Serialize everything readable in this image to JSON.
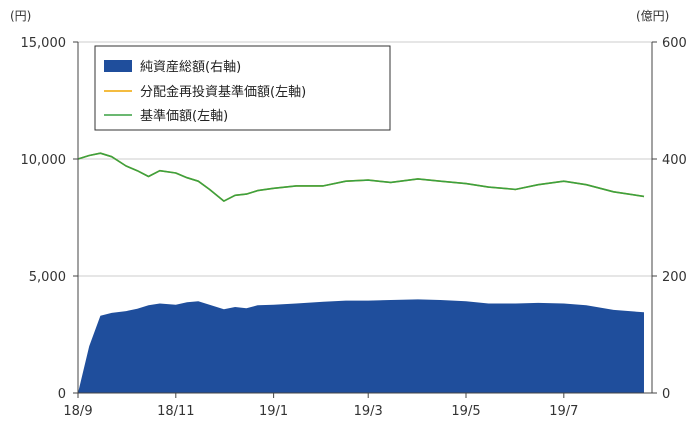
{
  "chart_data": {
    "type": "line",
    "title": "",
    "units": {
      "left": "(円)",
      "right": "(億円)"
    },
    "x_ticks": [
      "18/9",
      "18/11",
      "19/1",
      "19/3",
      "19/5",
      "19/7"
    ],
    "y_left": {
      "ylim": [
        0,
        15000
      ],
      "ticks": [
        "15,000",
        "10,000",
        "5,000",
        "0"
      ]
    },
    "y_right": {
      "ylim": [
        0,
        600
      ],
      "ticks": [
        "600",
        "400",
        "200",
        "0"
      ]
    },
    "grid": true,
    "legend_placement": "top-left",
    "legend": [
      "純資産総額(右軸)",
      "分配金再投資基準価額(左軸)",
      "基準価額(左軸)"
    ],
    "colors": {
      "nav_total": "#1f4e9c",
      "reinvested": "#f0a500",
      "nav": "#3aa142"
    },
    "x": [
      "2018-09-01",
      "2018-09-08",
      "2018-09-15",
      "2018-09-22",
      "2018-10-01",
      "2018-10-08",
      "2018-10-15",
      "2018-10-22",
      "2018-11-01",
      "2018-11-08",
      "2018-11-15",
      "2018-11-22",
      "2018-12-01",
      "2018-12-08",
      "2018-12-15",
      "2018-12-22",
      "2019-01-01",
      "2019-01-15",
      "2019-02-01",
      "2019-02-15",
      "2019-03-01",
      "2019-03-15",
      "2019-04-01",
      "2019-04-15",
      "2019-05-01",
      "2019-05-15",
      "2019-06-01",
      "2019-06-15",
      "2019-07-01",
      "2019-07-15",
      "2019-08-01",
      "2019-08-20"
    ],
    "series": [
      {
        "name": "純資産総額(右軸)",
        "axis": "right",
        "type": "area",
        "values": [
          0,
          80,
          132,
          137,
          140,
          144,
          150,
          153,
          151,
          155,
          157,
          151,
          143,
          147,
          145,
          150,
          151,
          153,
          156,
          158,
          158,
          159,
          160,
          159,
          157,
          153,
          153,
          154,
          153,
          150,
          142,
          138
        ]
      },
      {
        "name": "分配金再投資基準価額(左軸)",
        "axis": "left",
        "type": "line",
        "values": [
          10000,
          10150,
          10250,
          10100,
          9700,
          9500,
          9250,
          9500,
          9400,
          9200,
          9050,
          8700,
          8200,
          8450,
          8500,
          8650,
          8750,
          8850,
          8850,
          9050,
          9100,
          9000,
          9150,
          9050,
          8950,
          8800,
          8700,
          8900,
          9050,
          8900,
          8600,
          8400
        ]
      },
      {
        "name": "基準価額(左軸)",
        "axis": "left",
        "type": "line",
        "values": [
          10000,
          10150,
          10250,
          10100,
          9700,
          9500,
          9250,
          9500,
          9400,
          9200,
          9050,
          8700,
          8200,
          8450,
          8500,
          8650,
          8750,
          8850,
          8850,
          9050,
          9100,
          9000,
          9150,
          9050,
          8950,
          8800,
          8700,
          8900,
          9050,
          8900,
          8600,
          8400
        ]
      }
    ]
  }
}
